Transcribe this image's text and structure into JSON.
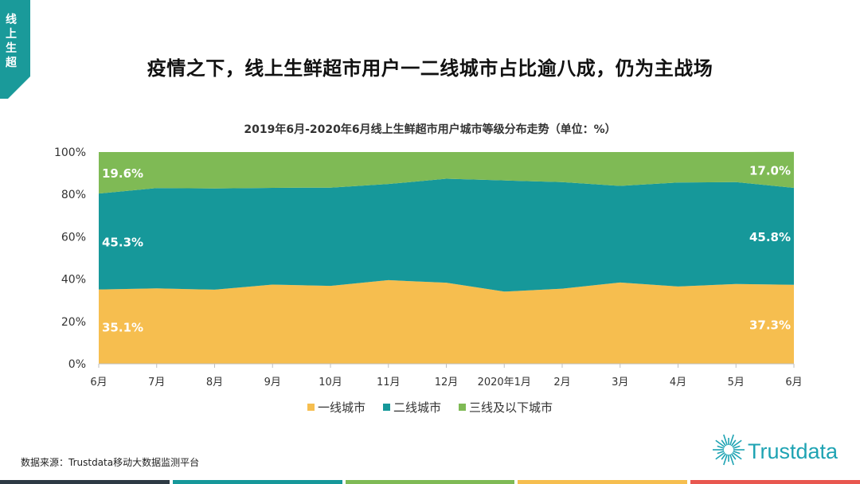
{
  "side_tab": {
    "chars": [
      "线",
      "上",
      "生",
      "超"
    ],
    "color": "#1a9a9a"
  },
  "page_title": "疫情之下，线上生鲜超市用户一二线城市占比逾八成，仍为主战场",
  "chart_data": {
    "type": "area",
    "stacked": true,
    "title": "2019年6月-2020年6月线上生鲜超市用户城市等级分布走势（单位：%）",
    "categories": [
      "6月",
      "7月",
      "8月",
      "9月",
      "10月",
      "11月",
      "12月",
      "2020年1月",
      "2月",
      "3月",
      "4月",
      "5月",
      "6月"
    ],
    "ylim": [
      0,
      100
    ],
    "yticks": [
      "0%",
      "20%",
      "40%",
      "60%",
      "80%",
      "100%"
    ],
    "grid": false,
    "legend_position": "bottom",
    "series": [
      {
        "name": "一线城市",
        "color": "#f6be4f",
        "values": [
          35.1,
          35.6,
          35.0,
          37.4,
          36.8,
          39.5,
          38.3,
          34.1,
          35.5,
          38.4,
          36.5,
          37.7,
          37.3
        ]
      },
      {
        "name": "二线城市",
        "color": "#16989a",
        "values": [
          45.3,
          47.4,
          47.8,
          45.7,
          46.4,
          45.4,
          49.1,
          52.5,
          50.3,
          45.6,
          49.1,
          48.1,
          45.8
        ]
      },
      {
        "name": "三线及以下城市",
        "color": "#7fba55",
        "values": [
          19.6,
          17.0,
          17.2,
          16.9,
          16.8,
          15.1,
          12.6,
          13.4,
          14.2,
          16.0,
          14.4,
          14.2,
          17.0
        ]
      }
    ],
    "data_labels": [
      {
        "series": 0,
        "index": 0,
        "text": "35.1%"
      },
      {
        "series": 1,
        "index": 0,
        "text": "45.3%"
      },
      {
        "series": 2,
        "index": 0,
        "text": "19.6%"
      },
      {
        "series": 0,
        "index": 12,
        "text": "37.3%"
      },
      {
        "series": 1,
        "index": 12,
        "text": "45.8%"
      },
      {
        "series": 2,
        "index": 12,
        "text": "17.0%"
      }
    ]
  },
  "source": "数据来源：Trustdata移动大数据监测平台",
  "logo_text": "Trustdata",
  "bottom_bar_colors": [
    "#2d3a44",
    "#16989a",
    "#7fba55",
    "#f6be4f",
    "#e8574f"
  ]
}
